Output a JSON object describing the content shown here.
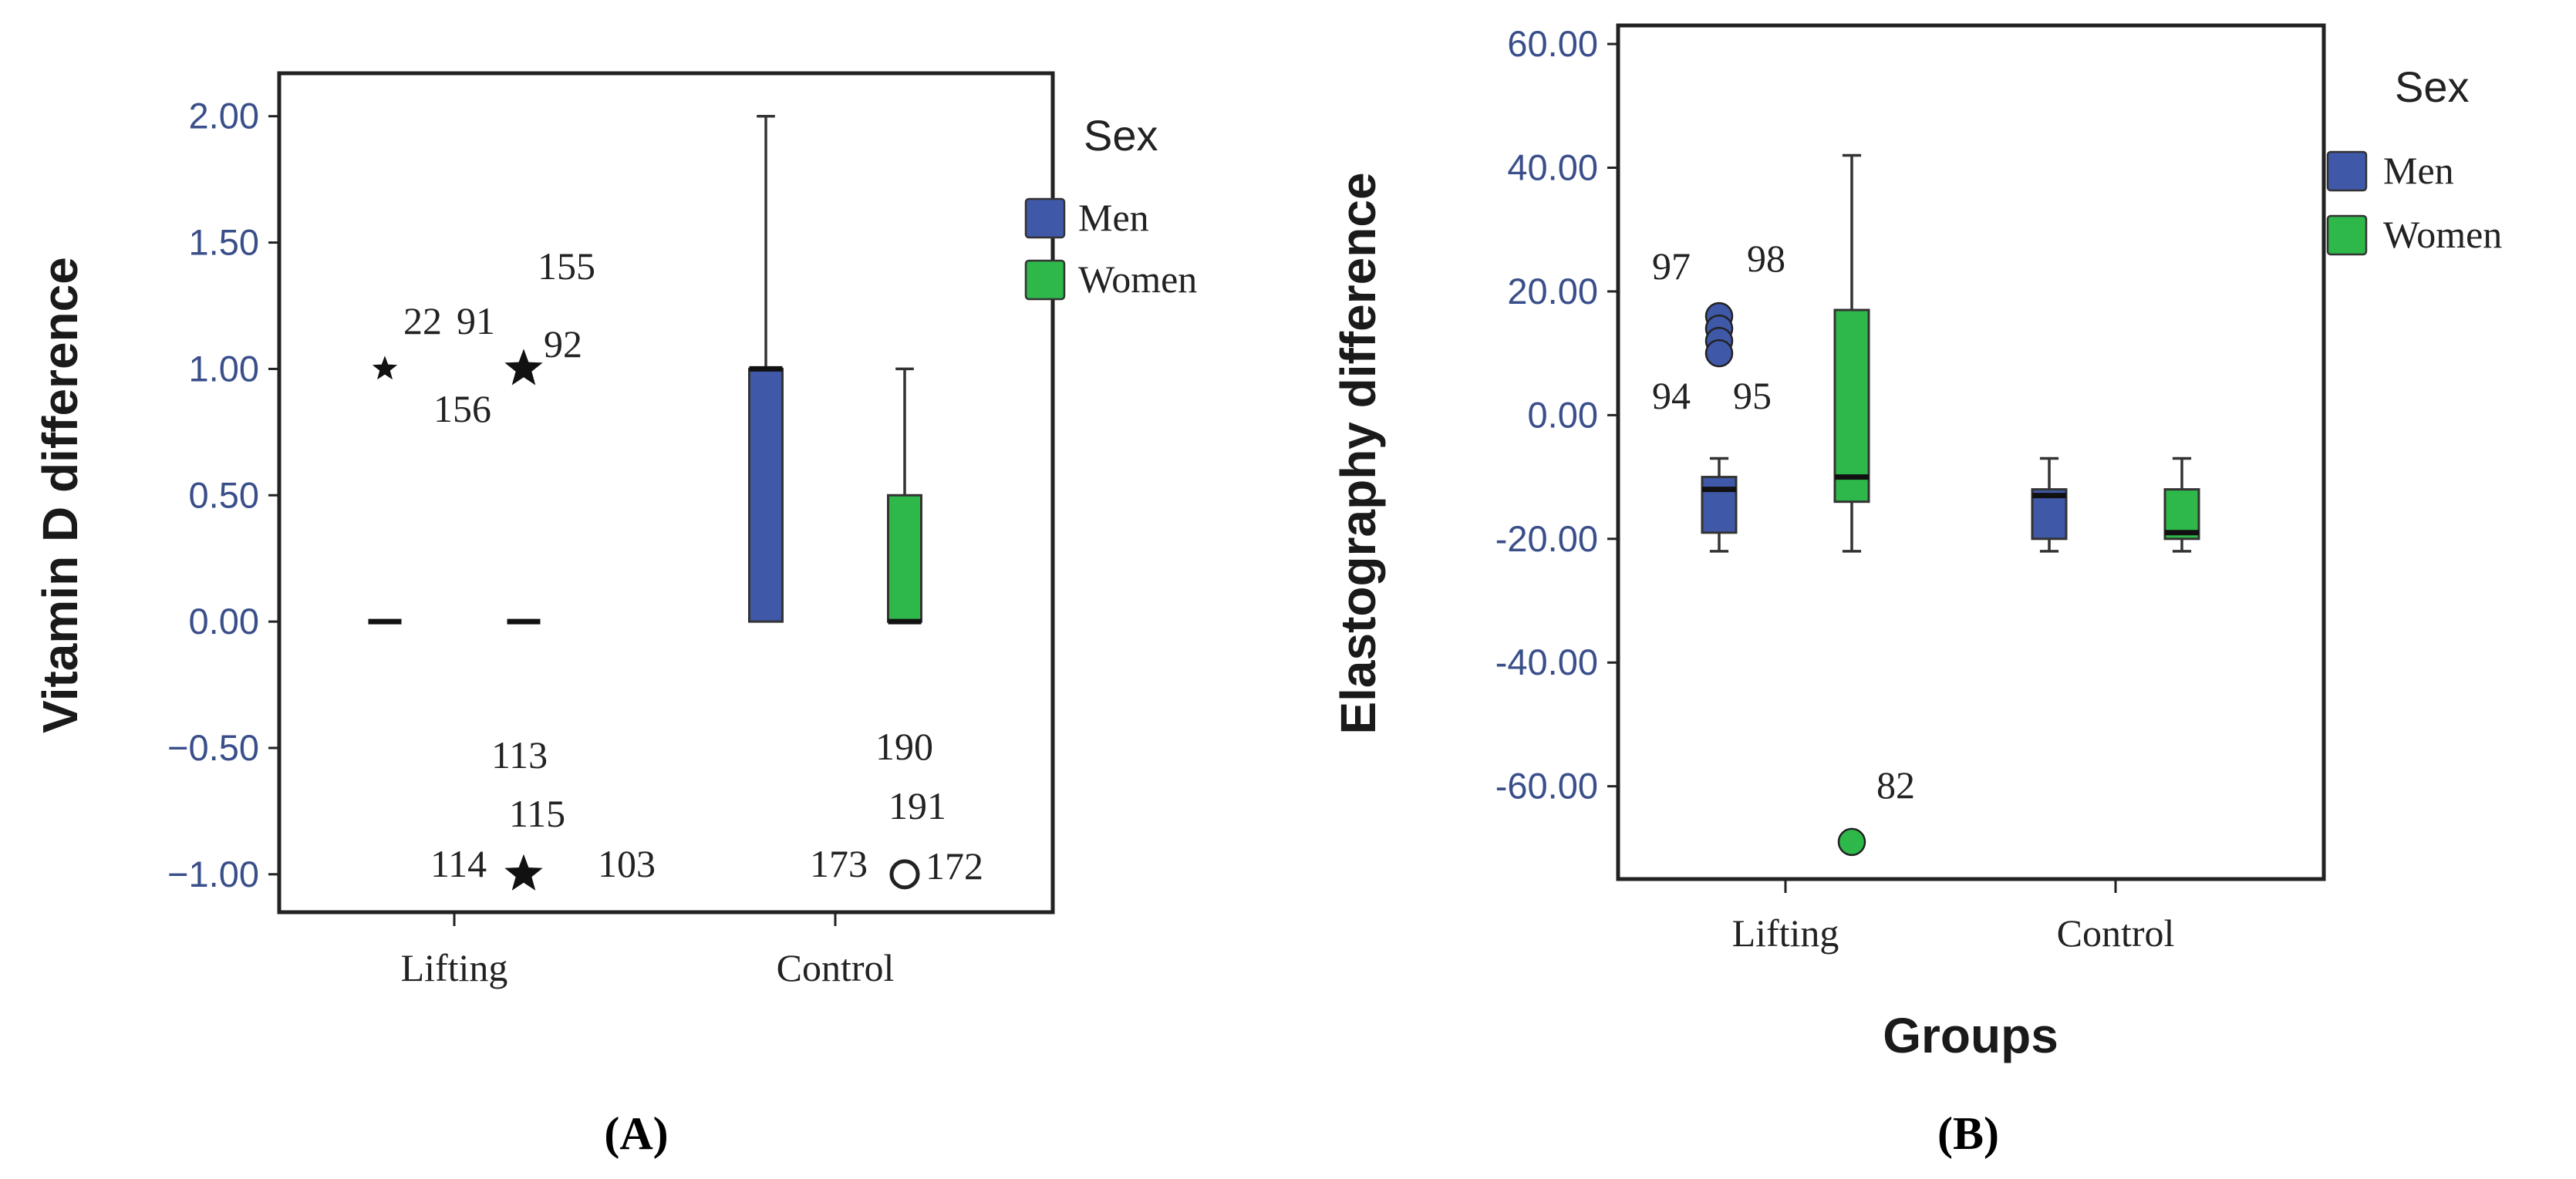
{
  "colors": {
    "men": "#3f58a8",
    "women": "#2eb84a",
    "frame": "#222222",
    "tick_text": "#3a4f8a"
  },
  "chart_data": [
    {
      "panel": "(A)",
      "type": "boxplot",
      "ylabel": "Vitamin D difference",
      "xlabel": "",
      "ylim": [
        -1.15,
        2.17
      ],
      "yticks": [
        2.0,
        1.5,
        1.0,
        0.5,
        0.0,
        -0.5,
        -1.0
      ],
      "ytick_labels": [
        "2.00",
        "1.50",
        "1.00",
        "0.50",
        "0.00",
        "−0.50",
        "−1.00"
      ],
      "categories": [
        "Lifting",
        "Control"
      ],
      "legend": {
        "title": "Sex",
        "items": [
          "Men",
          "Women"
        ]
      },
      "series": [
        {
          "name": "Men",
          "boxes": [
            {
              "group": "Lifting",
              "whisker_low": 0.0,
              "q1": 0.0,
              "median": 0.0,
              "q3": 0.0,
              "whisker_high": 0.0
            },
            {
              "group": "Control",
              "whisker_low": 0.0,
              "q1": 0.0,
              "median": 1.0,
              "q3": 1.0,
              "whisker_high": 2.0
            }
          ]
        },
        {
          "name": "Women",
          "boxes": [
            {
              "group": "Lifting",
              "whisker_low": 0.0,
              "q1": 0.0,
              "median": 0.0,
              "q3": 0.0,
              "whisker_high": 0.0
            },
            {
              "group": "Control",
              "whisker_low": 0.0,
              "q1": 0.0,
              "median": 0.0,
              "q3": 0.5,
              "whisker_high": 1.0
            }
          ]
        }
      ],
      "outliers": [
        {
          "series": "Men",
          "group": "Lifting",
          "y": 1.0,
          "marker": "star-small",
          "labels": []
        },
        {
          "series": "Women",
          "group": "Lifting",
          "y": 1.0,
          "marker": "star",
          "labels": []
        },
        {
          "series": "Women",
          "group": "Lifting",
          "y": -1.0,
          "marker": "star",
          "labels": []
        },
        {
          "series": "Women",
          "group": "Control",
          "y": -1.0,
          "marker": "circle",
          "labels": []
        }
      ],
      "annotations": [
        "22",
        "91",
        "155",
        "92",
        "156",
        "113",
        "115",
        "114",
        "103",
        "190",
        "191",
        "173",
        "172"
      ]
    },
    {
      "panel": "(B)",
      "type": "boxplot",
      "ylabel": "Elastography difference",
      "xlabel": "Groups",
      "ylim": [
        -75,
        63
      ],
      "yticks": [
        60,
        40,
        20,
        0,
        -20,
        -40,
        -60
      ],
      "ytick_labels": [
        "60.00",
        "40.00",
        "20.00",
        "0.00",
        "-20.00",
        "-40.00",
        "-60.00"
      ],
      "categories": [
        "Lifting",
        "Control"
      ],
      "legend": {
        "title": "Sex",
        "items": [
          "Men",
          "Women"
        ]
      },
      "series": [
        {
          "name": "Men",
          "boxes": [
            {
              "group": "Lifting",
              "whisker_low": -22,
              "q1": -19,
              "median": -12,
              "q3": -10,
              "whisker_high": -7
            },
            {
              "group": "Control",
              "whisker_low": -22,
              "q1": -20,
              "median": -13,
              "q3": -12,
              "whisker_high": -7
            }
          ]
        },
        {
          "name": "Women",
          "boxes": [
            {
              "group": "Lifting",
              "whisker_low": -22,
              "q1": -14,
              "median": -10,
              "q3": 17,
              "whisker_high": 42
            },
            {
              "group": "Control",
              "whisker_low": -22,
              "q1": -20,
              "median": -19,
              "q3": -12,
              "whisker_high": -7
            }
          ]
        }
      ],
      "outliers": [
        {
          "series": "Men",
          "group": "Lifting",
          "y": 16,
          "marker": "circle",
          "labels": []
        },
        {
          "series": "Men",
          "group": "Lifting",
          "y": 14,
          "marker": "circle",
          "labels": []
        },
        {
          "series": "Men",
          "group": "Lifting",
          "y": 12,
          "marker": "circle",
          "labels": []
        },
        {
          "series": "Men",
          "group": "Lifting",
          "y": 10,
          "marker": "circle",
          "labels": []
        },
        {
          "series": "Women",
          "group": "Lifting",
          "y": -69,
          "marker": "circle",
          "labels": []
        }
      ],
      "annotations": [
        "97",
        "98",
        "94",
        "95",
        "82"
      ]
    }
  ]
}
